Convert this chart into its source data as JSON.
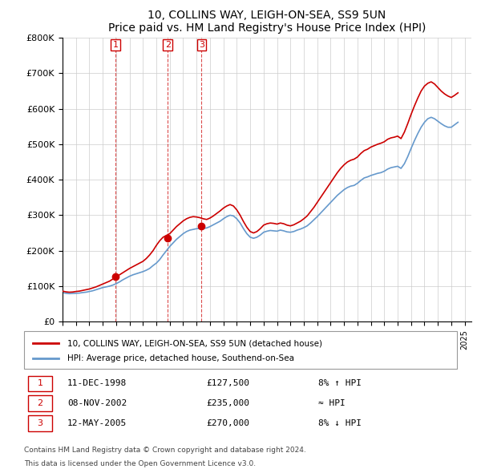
{
  "title": "10, COLLINS WAY, LEIGH-ON-SEA, SS9 5UN",
  "subtitle": "Price paid vs. HM Land Registry's House Price Index (HPI)",
  "ylabel_ticks": [
    "£0",
    "£100K",
    "£200K",
    "£300K",
    "£400K",
    "£500K",
    "£600K",
    "£700K",
    "£800K"
  ],
  "ytick_vals": [
    0,
    100000,
    200000,
    300000,
    400000,
    500000,
    600000,
    700000,
    800000
  ],
  "ylim": [
    0,
    800000
  ],
  "xlim_start": 1995.0,
  "xlim_end": 2025.5,
  "legend_line1": "10, COLLINS WAY, LEIGH-ON-SEA, SS9 5UN (detached house)",
  "legend_line2": "HPI: Average price, detached house, Southend-on-Sea",
  "red_color": "#cc0000",
  "blue_color": "#6699cc",
  "transactions": [
    {
      "num": 1,
      "date": "11-DEC-1998",
      "year": 1998.95,
      "price": 127500,
      "label": "8% ↑ HPI"
    },
    {
      "num": 2,
      "date": "08-NOV-2002",
      "year": 2002.85,
      "price": 235000,
      "label": "≈ HPI"
    },
    {
      "num": 3,
      "date": "12-MAY-2005",
      "year": 2005.37,
      "price": 270000,
      "label": "8% ↓ HPI"
    }
  ],
  "footer1": "Contains HM Land Registry data © Crown copyright and database right 2024.",
  "footer2": "This data is licensed under the Open Government Licence v3.0.",
  "hpi_data": {
    "years": [
      1995.0,
      1995.25,
      1995.5,
      1995.75,
      1996.0,
      1996.25,
      1996.5,
      1996.75,
      1997.0,
      1997.25,
      1997.5,
      1997.75,
      1998.0,
      1998.25,
      1998.5,
      1998.75,
      1999.0,
      1999.25,
      1999.5,
      1999.75,
      2000.0,
      2000.25,
      2000.5,
      2000.75,
      2001.0,
      2001.25,
      2001.5,
      2001.75,
      2002.0,
      2002.25,
      2002.5,
      2002.75,
      2003.0,
      2003.25,
      2003.5,
      2003.75,
      2004.0,
      2004.25,
      2004.5,
      2004.75,
      2005.0,
      2005.25,
      2005.5,
      2005.75,
      2006.0,
      2006.25,
      2006.5,
      2006.75,
      2007.0,
      2007.25,
      2007.5,
      2007.75,
      2008.0,
      2008.25,
      2008.5,
      2008.75,
      2009.0,
      2009.25,
      2009.5,
      2009.75,
      2010.0,
      2010.25,
      2010.5,
      2010.75,
      2011.0,
      2011.25,
      2011.5,
      2011.75,
      2012.0,
      2012.25,
      2012.5,
      2012.75,
      2013.0,
      2013.25,
      2013.5,
      2013.75,
      2014.0,
      2014.25,
      2014.5,
      2014.75,
      2015.0,
      2015.25,
      2015.5,
      2015.75,
      2016.0,
      2016.25,
      2016.5,
      2016.75,
      2017.0,
      2017.25,
      2017.5,
      2017.75,
      2018.0,
      2018.25,
      2018.5,
      2018.75,
      2019.0,
      2019.25,
      2019.5,
      2019.75,
      2020.0,
      2020.25,
      2020.5,
      2020.75,
      2021.0,
      2021.25,
      2021.5,
      2021.75,
      2022.0,
      2022.25,
      2022.5,
      2022.75,
      2023.0,
      2023.25,
      2023.5,
      2023.75,
      2024.0,
      2024.25,
      2024.5
    ],
    "values": [
      82000,
      80000,
      79000,
      79500,
      80000,
      80500,
      82000,
      83000,
      85000,
      87000,
      90000,
      93000,
      96000,
      98000,
      100000,
      103000,
      107000,
      112000,
      118000,
      123000,
      128000,
      132000,
      135000,
      138000,
      141000,
      145000,
      150000,
      158000,
      165000,
      175000,
      188000,
      200000,
      212000,
      222000,
      232000,
      240000,
      248000,
      254000,
      258000,
      260000,
      262000,
      263000,
      263000,
      264000,
      268000,
      273000,
      278000,
      283000,
      290000,
      296000,
      300000,
      298000,
      290000,
      278000,
      262000,
      248000,
      238000,
      235000,
      238000,
      244000,
      252000,
      255000,
      257000,
      256000,
      255000,
      258000,
      256000,
      253000,
      252000,
      254000,
      258000,
      261000,
      265000,
      270000,
      278000,
      287000,
      296000,
      306000,
      316000,
      326000,
      336000,
      346000,
      356000,
      364000,
      372000,
      378000,
      382000,
      384000,
      390000,
      398000,
      405000,
      408000,
      412000,
      415000,
      418000,
      420000,
      424000,
      430000,
      434000,
      436000,
      438000,
      432000,
      445000,
      465000,
      488000,
      510000,
      530000,
      548000,
      562000,
      572000,
      576000,
      572000,
      565000,
      558000,
      552000,
      548000,
      548000,
      555000,
      562000
    ]
  },
  "price_paid_data": {
    "years": [
      1995.0,
      1995.25,
      1995.5,
      1995.75,
      1996.0,
      1996.25,
      1996.5,
      1996.75,
      1997.0,
      1997.25,
      1997.5,
      1997.75,
      1998.0,
      1998.25,
      1998.5,
      1998.75,
      1999.0,
      1999.25,
      1999.5,
      1999.75,
      2000.0,
      2000.25,
      2000.5,
      2000.75,
      2001.0,
      2001.25,
      2001.5,
      2001.75,
      2002.0,
      2002.25,
      2002.5,
      2002.75,
      2003.0,
      2003.25,
      2003.5,
      2003.75,
      2004.0,
      2004.25,
      2004.5,
      2004.75,
      2005.0,
      2005.25,
      2005.5,
      2005.75,
      2006.0,
      2006.25,
      2006.5,
      2006.75,
      2007.0,
      2007.25,
      2007.5,
      2007.75,
      2008.0,
      2008.25,
      2008.5,
      2008.75,
      2009.0,
      2009.25,
      2009.5,
      2009.75,
      2010.0,
      2010.25,
      2010.5,
      2010.75,
      2011.0,
      2011.25,
      2011.5,
      2011.75,
      2012.0,
      2012.25,
      2012.5,
      2012.75,
      2013.0,
      2013.25,
      2013.5,
      2013.75,
      2014.0,
      2014.25,
      2014.5,
      2014.75,
      2015.0,
      2015.25,
      2015.5,
      2015.75,
      2016.0,
      2016.25,
      2016.5,
      2016.75,
      2017.0,
      2017.25,
      2017.5,
      2017.75,
      2018.0,
      2018.25,
      2018.5,
      2018.75,
      2019.0,
      2019.25,
      2019.5,
      2019.75,
      2020.0,
      2020.25,
      2020.5,
      2020.75,
      2021.0,
      2021.25,
      2021.5,
      2021.75,
      2022.0,
      2022.25,
      2022.5,
      2022.75,
      2023.0,
      2023.25,
      2023.5,
      2023.75,
      2024.0,
      2024.25,
      2024.5
    ],
    "values": [
      86000,
      84000,
      83000,
      83500,
      85000,
      86000,
      88000,
      90000,
      92000,
      95000,
      98000,
      102000,
      106000,
      110000,
      114000,
      120000,
      127500,
      132000,
      138000,
      144000,
      150000,
      155000,
      160000,
      165000,
      170000,
      178000,
      188000,
      200000,
      215000,
      228000,
      238000,
      243000,
      248000,
      258000,
      268000,
      276000,
      284000,
      290000,
      294000,
      296000,
      295000,
      293000,
      290000,
      288000,
      292000,
      298000,
      305000,
      312000,
      320000,
      326000,
      330000,
      326000,
      315000,
      300000,
      282000,
      266000,
      254000,
      250000,
      254000,
      262000,
      272000,
      276000,
      278000,
      277000,
      275000,
      278000,
      276000,
      272000,
      270000,
      273000,
      278000,
      283000,
      290000,
      298000,
      310000,
      322000,
      336000,
      350000,
      364000,
      378000,
      392000,
      406000,
      420000,
      432000,
      442000,
      450000,
      455000,
      458000,
      464000,
      474000,
      482000,
      486000,
      492000,
      496000,
      500000,
      503000,
      507000,
      514000,
      518000,
      520000,
      523000,
      516000,
      534000,
      558000,
      584000,
      608000,
      630000,
      650000,
      664000,
      672000,
      676000,
      670000,
      660000,
      650000,
      642000,
      636000,
      632000,
      638000,
      645000
    ]
  }
}
